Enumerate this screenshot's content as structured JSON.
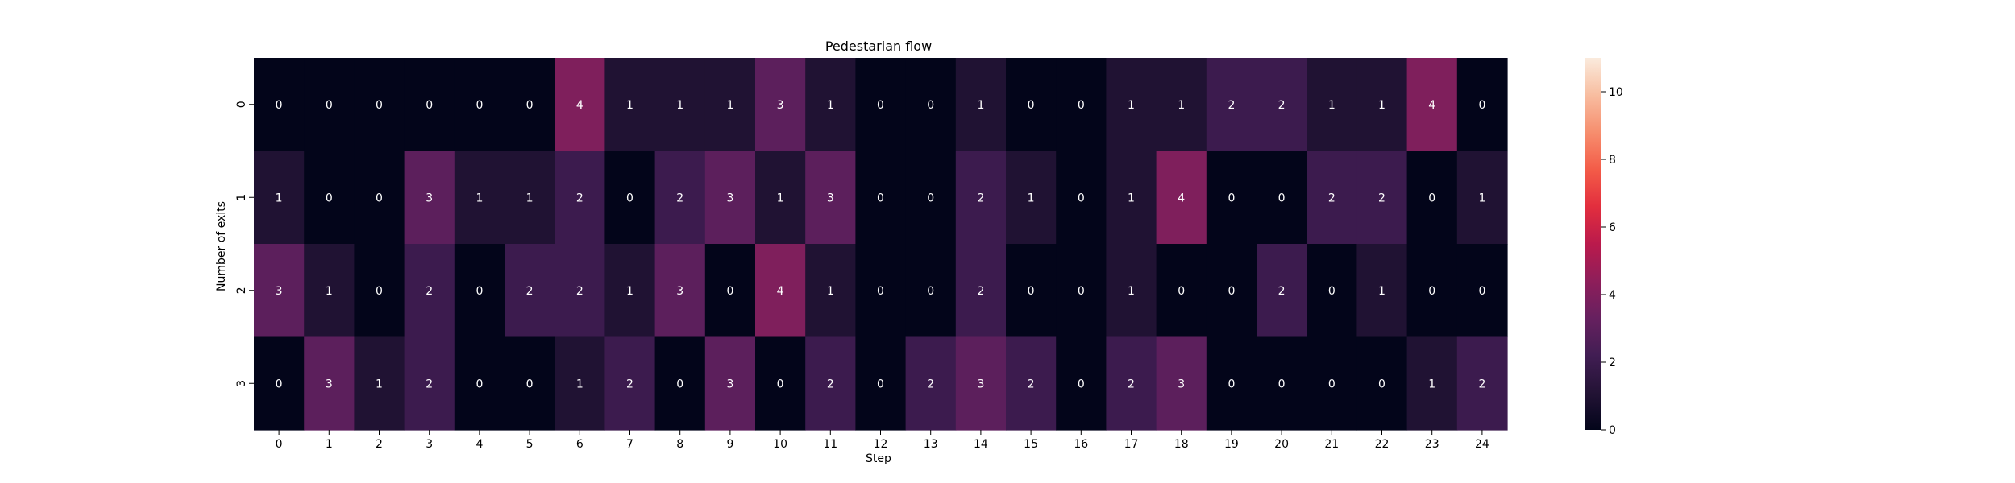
{
  "chart_data": {
    "type": "heatmap",
    "title": "Pedestarian flow",
    "xlabel": "Step",
    "ylabel": "Number of exits",
    "x_categories": [
      "0",
      "1",
      "2",
      "3",
      "4",
      "5",
      "6",
      "7",
      "8",
      "9",
      "10",
      "11",
      "12",
      "13",
      "14",
      "15",
      "16",
      "17",
      "18",
      "19",
      "20",
      "21",
      "22",
      "23",
      "24"
    ],
    "y_categories": [
      "0",
      "1",
      "2",
      "3"
    ],
    "values": [
      [
        0,
        0,
        0,
        0,
        0,
        0,
        4,
        1,
        1,
        1,
        3,
        1,
        0,
        0,
        1,
        0,
        0,
        1,
        1,
        2,
        2,
        1,
        1,
        4,
        0
      ],
      [
        1,
        0,
        0,
        3,
        1,
        1,
        2,
        0,
        2,
        3,
        1,
        3,
        0,
        0,
        2,
        1,
        0,
        1,
        4,
        0,
        0,
        2,
        2,
        0,
        1
      ],
      [
        3,
        1,
        0,
        2,
        0,
        2,
        2,
        1,
        3,
        0,
        4,
        1,
        0,
        0,
        2,
        0,
        0,
        1,
        0,
        0,
        2,
        0,
        1,
        0,
        0
      ],
      [
        0,
        3,
        1,
        2,
        0,
        0,
        1,
        2,
        0,
        3,
        0,
        2,
        0,
        2,
        3,
        2,
        0,
        2,
        3,
        0,
        0,
        0,
        0,
        1,
        2
      ]
    ],
    "colorbar": {
      "vmin": 0,
      "vmax": 11,
      "ticks": [
        "0",
        "2",
        "4",
        "6",
        "8",
        "10"
      ],
      "colormap": "rocket"
    },
    "annotations": true,
    "grid": false,
    "legend": "colorbar-right"
  }
}
